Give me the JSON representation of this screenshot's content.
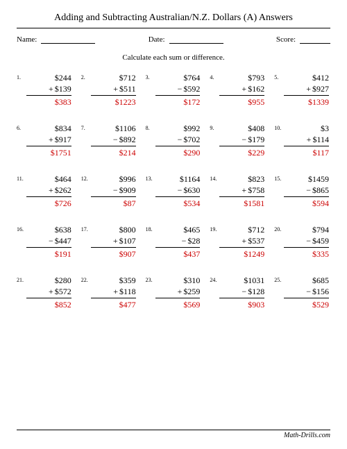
{
  "title": "Adding and Subtracting Australian/N.Z. Dollars (A) Answers",
  "meta": {
    "name_label": "Name:",
    "date_label": "Date:",
    "score_label": "Score:"
  },
  "instruction": "Calculate each sum or difference.",
  "footer": "Math-Drills.com",
  "style": {
    "answer_color": "#cc0000",
    "text_color": "#000000",
    "background": "#ffffff",
    "font_family": "Times New Roman, serif",
    "title_fontsize": 14,
    "body_fontsize": 12,
    "meta_fontsize": 11,
    "num_fontsize": 8,
    "columns": 5,
    "rows": 5
  },
  "problems": [
    {
      "n": "1.",
      "a": "$244",
      "s": "+",
      "b": "$139",
      "r": "$383"
    },
    {
      "n": "2.",
      "a": "$712",
      "s": "+",
      "b": "$511",
      "r": "$1223"
    },
    {
      "n": "3.",
      "a": "$764",
      "s": "−",
      "b": "$592",
      "r": "$172"
    },
    {
      "n": "4.",
      "a": "$793",
      "s": "+",
      "b": "$162",
      "r": "$955"
    },
    {
      "n": "5.",
      "a": "$412",
      "s": "+",
      "b": "$927",
      "r": "$1339"
    },
    {
      "n": "6.",
      "a": "$834",
      "s": "+",
      "b": "$917",
      "r": "$1751"
    },
    {
      "n": "7.",
      "a": "$1106",
      "s": "−",
      "b": "$892",
      "r": "$214"
    },
    {
      "n": "8.",
      "a": "$992",
      "s": "−",
      "b": "$702",
      "r": "$290"
    },
    {
      "n": "9.",
      "a": "$408",
      "s": "−",
      "b": "$179",
      "r": "$229"
    },
    {
      "n": "10.",
      "a": "$3",
      "s": "+",
      "b": "$114",
      "r": "$117"
    },
    {
      "n": "11.",
      "a": "$464",
      "s": "+",
      "b": "$262",
      "r": "$726"
    },
    {
      "n": "12.",
      "a": "$996",
      "s": "−",
      "b": "$909",
      "r": "$87"
    },
    {
      "n": "13.",
      "a": "$1164",
      "s": "−",
      "b": "$630",
      "r": "$534"
    },
    {
      "n": "14.",
      "a": "$823",
      "s": "+",
      "b": "$758",
      "r": "$1581"
    },
    {
      "n": "15.",
      "a": "$1459",
      "s": "−",
      "b": "$865",
      "r": "$594"
    },
    {
      "n": "16.",
      "a": "$638",
      "s": "−",
      "b": "$447",
      "r": "$191"
    },
    {
      "n": "17.",
      "a": "$800",
      "s": "+",
      "b": "$107",
      "r": "$907"
    },
    {
      "n": "18.",
      "a": "$465",
      "s": "−",
      "b": "$28",
      "r": "$437"
    },
    {
      "n": "19.",
      "a": "$712",
      "s": "+",
      "b": "$537",
      "r": "$1249"
    },
    {
      "n": "20.",
      "a": "$794",
      "s": "−",
      "b": "$459",
      "r": "$335"
    },
    {
      "n": "21.",
      "a": "$280",
      "s": "+",
      "b": "$572",
      "r": "$852"
    },
    {
      "n": "22.",
      "a": "$359",
      "s": "+",
      "b": "$118",
      "r": "$477"
    },
    {
      "n": "23.",
      "a": "$310",
      "s": "+",
      "b": "$259",
      "r": "$569"
    },
    {
      "n": "24.",
      "a": "$1031",
      "s": "−",
      "b": "$128",
      "r": "$903"
    },
    {
      "n": "25.",
      "a": "$685",
      "s": "−",
      "b": "$156",
      "r": "$529"
    }
  ]
}
